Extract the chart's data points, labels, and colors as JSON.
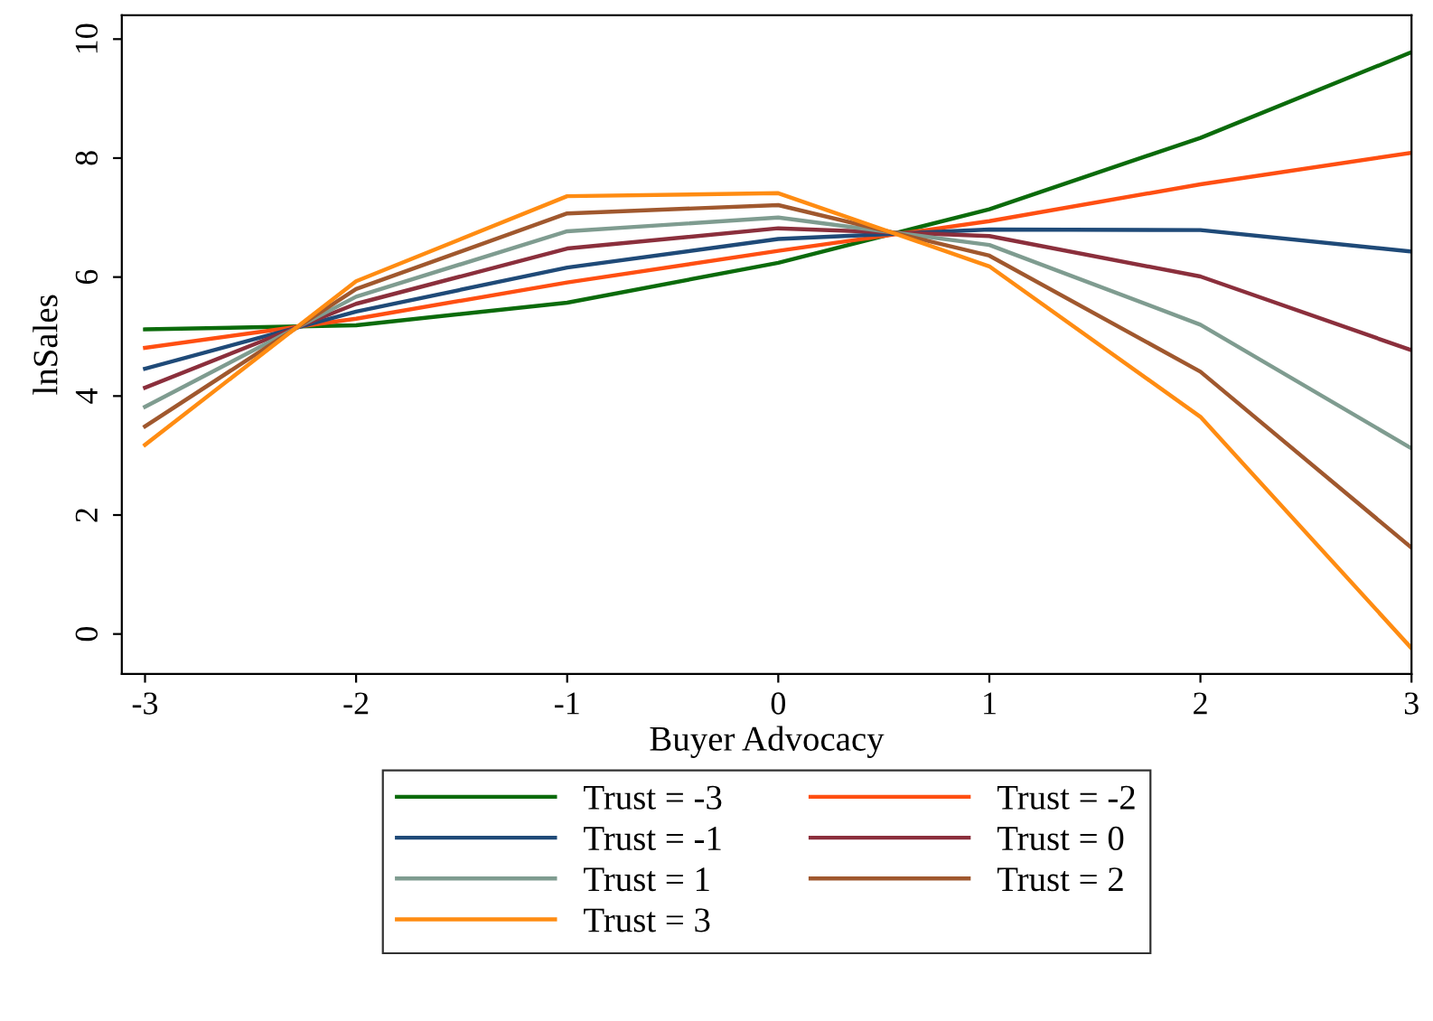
{
  "chart_data": {
    "type": "line",
    "xlabel": "Buyer Advocacy",
    "ylabel": "lnSales",
    "x": [
      -3,
      -2,
      -1,
      0,
      1,
      2,
      3
    ],
    "series": [
      {
        "name": "Trust = -3",
        "color": "#0b6b0b",
        "values": [
          5.12,
          5.19,
          5.57,
          6.24,
          7.14,
          8.34,
          9.78
        ]
      },
      {
        "name": "Trust = -2",
        "color": "#ff4f12",
        "values": [
          4.81,
          5.3,
          5.91,
          6.44,
          6.94,
          7.56,
          8.09
        ]
      },
      {
        "name": "Trust = -1",
        "color": "#1f4a78",
        "values": [
          4.46,
          5.42,
          6.16,
          6.64,
          6.8,
          6.79,
          6.43
        ]
      },
      {
        "name": "Trust = 0",
        "color": "#8b2f3c",
        "values": [
          4.14,
          5.55,
          6.48,
          6.82,
          6.69,
          6.01,
          4.77
        ]
      },
      {
        "name": "Trust = 1",
        "color": "#7f9c90",
        "values": [
          3.82,
          5.67,
          6.77,
          7.0,
          6.54,
          5.2,
          3.12
        ]
      },
      {
        "name": "Trust = 2",
        "color": "#a0582e",
        "values": [
          3.49,
          5.8,
          7.07,
          7.21,
          6.36,
          4.41,
          1.45
        ]
      },
      {
        "name": "Trust = 3",
        "color": "#ff8c12",
        "values": [
          3.18,
          5.93,
          7.36,
          7.41,
          6.18,
          3.65,
          -0.24
        ]
      }
    ],
    "xlim": [
      -3.11,
      3.0
    ],
    "ylim": [
      -0.67,
      10.4
    ],
    "xticks": [
      -3,
      -2,
      -1,
      0,
      1,
      2,
      3
    ],
    "yticks": [
      0,
      2,
      4,
      6,
      8,
      10
    ],
    "grid": false,
    "legend": "bottom",
    "marker": "none",
    "line_style": "solid"
  }
}
